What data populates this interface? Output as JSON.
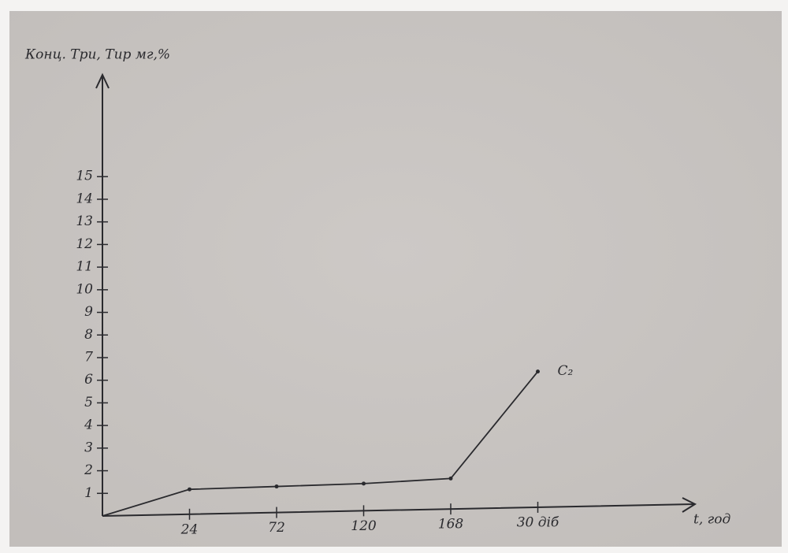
{
  "chart_data": {
    "type": "line",
    "y_label": "Конц. Три, Тир мг,%",
    "x_label": "t, год",
    "categories": [
      null,
      "24",
      "72",
      "120",
      "168",
      "30 діб"
    ],
    "series": [
      {
        "name": "C₂",
        "color": "#2a2a2e",
        "values": [
          0,
          1.1,
          1.15,
          1.2,
          1.35,
          6
        ]
      }
    ],
    "ylim": [
      0,
      19.5
    ],
    "yticks": [
      1,
      2,
      3,
      4,
      5,
      6,
      7,
      8,
      9,
      10,
      11,
      12,
      13,
      14,
      15
    ]
  }
}
